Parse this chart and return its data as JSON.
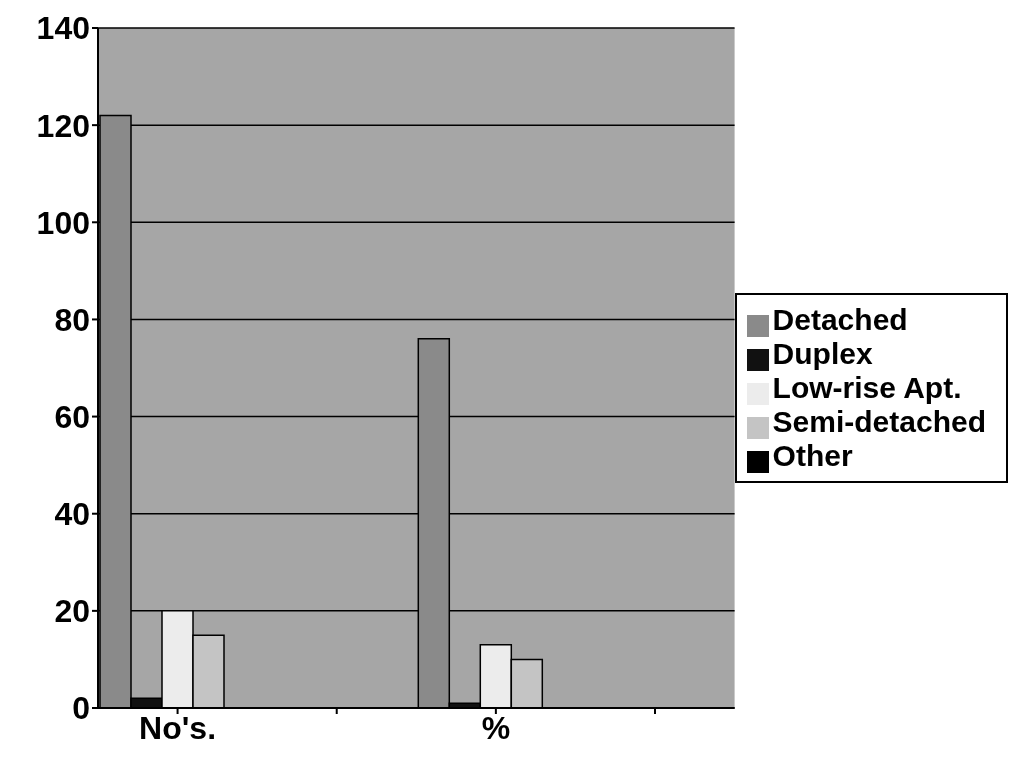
{
  "chart_data": {
    "type": "bar",
    "categories": [
      "No's.",
      null,
      "%",
      null
    ],
    "series": [
      {
        "name": "Detached",
        "color": "#8a8a8a",
        "values": [
          122,
          null,
          76,
          null
        ]
      },
      {
        "name": "Duplex",
        "color": "#111111",
        "values": [
          2,
          null,
          1,
          null
        ]
      },
      {
        "name": "Low-rise Apt.",
        "color": "#ececec",
        "values": [
          20,
          null,
          13,
          null
        ]
      },
      {
        "name": "Semi-detached",
        "color": "#c4c4c4",
        "values": [
          15,
          null,
          10,
          null
        ]
      },
      {
        "name": "Other",
        "color": "#000000",
        "values": [
          0,
          null,
          0,
          null
        ]
      }
    ],
    "ylim": [
      0,
      140
    ],
    "yticks": [
      0,
      20,
      40,
      60,
      80,
      100,
      120,
      140
    ],
    "grid": "y",
    "legend": "right"
  }
}
